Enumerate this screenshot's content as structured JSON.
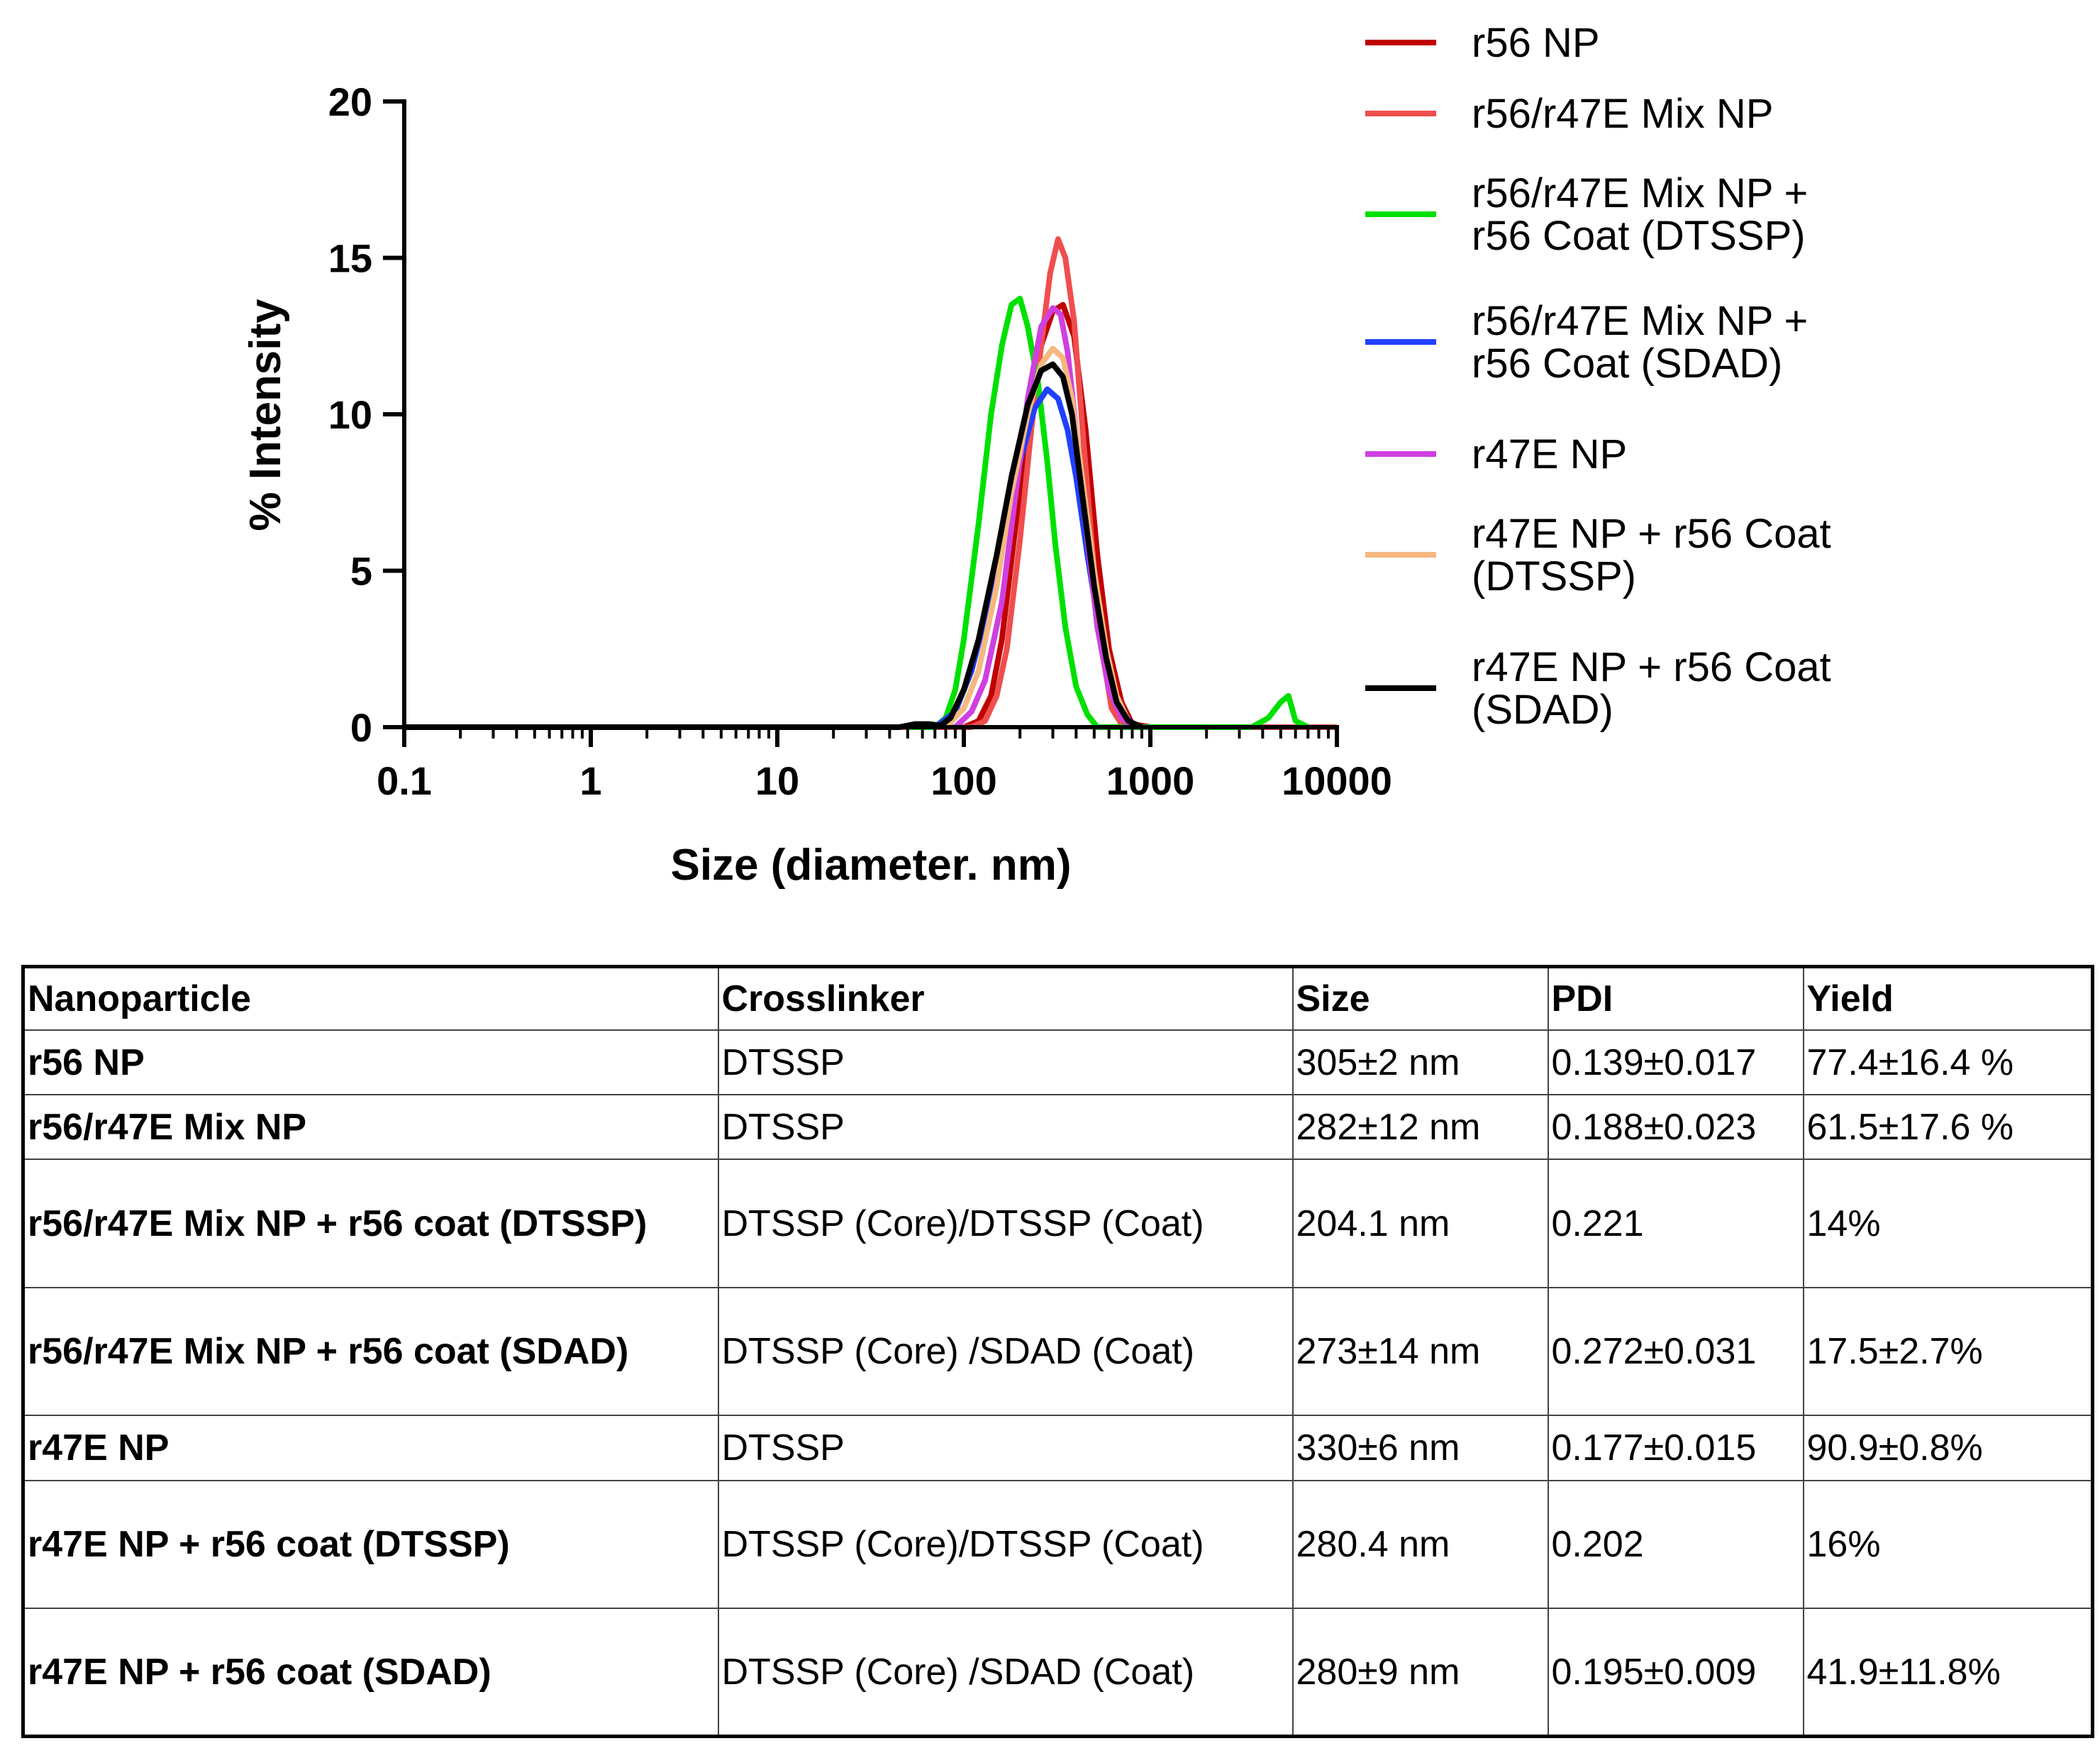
{
  "chart_data": {
    "type": "line",
    "title": "",
    "xlabel": "Size (diameter. nm)",
    "ylabel": "% Intensity",
    "xscale": "log",
    "xlim": [
      0.1,
      10000
    ],
    "ylim": [
      0,
      20
    ],
    "xticks": [
      "0.1",
      "1",
      "10",
      "100",
      "1000",
      "10000"
    ],
    "yticks": [
      "0",
      "5",
      "10",
      "15",
      "20"
    ],
    "grid": false,
    "legend_position": "right",
    "series": [
      {
        "name": "r56 NP",
        "color": "#c00000",
        "x": [
          0.4,
          100,
          120,
          140,
          160,
          190,
          220,
          260,
          300,
          340,
          390,
          450,
          520,
          600,
          700,
          800,
          1000
        ],
        "y": [
          0,
          0,
          0.2,
          1.0,
          2.8,
          6.5,
          9.5,
          12.2,
          13.3,
          13.5,
          12.5,
          9.5,
          5.5,
          2.5,
          0.8,
          0.1,
          0
        ]
      },
      {
        "name": "r56/r47E Mix NP",
        "color": "#f04e4e",
        "x": [
          0.4,
          110,
          130,
          150,
          170,
          200,
          230,
          260,
          290,
          320,
          350,
          390,
          440,
          500,
          560,
          620,
          700,
          800,
          1000,
          10000
        ],
        "y": [
          0,
          0,
          0.2,
          1.0,
          2.5,
          6.0,
          9.5,
          12.2,
          14.5,
          15.6,
          15.0,
          13.0,
          9.0,
          5.0,
          2.2,
          0.6,
          0.1,
          0,
          0,
          0
        ]
      },
      {
        "name": "r56/r47E Mix NP + r56 Coat (DTSSP)",
        "color": "#00e000",
        "x": [
          50,
          70,
          80,
          90,
          100,
          120,
          140,
          160,
          180,
          200,
          220,
          250,
          280,
          310,
          350,
          400,
          460,
          520,
          600,
          700,
          1000,
          3500,
          4300,
          5000,
          5500,
          6000,
          7000
        ],
        "y": [
          0,
          0,
          0.3,
          1.2,
          2.8,
          6.5,
          10.0,
          12.2,
          13.5,
          13.7,
          12.8,
          11.0,
          8.5,
          5.8,
          3.2,
          1.3,
          0.4,
          0,
          0,
          0,
          0,
          0,
          0.3,
          0.8,
          1.0,
          0.2,
          0
        ]
      },
      {
        "name": "r56/r47E Mix NP + r56 Coat (SDAD)",
        "color": "#2040ff",
        "x": [
          70,
          90,
          110,
          130,
          160,
          200,
          240,
          280,
          320,
          360,
          400,
          460,
          520,
          600,
          700,
          800,
          900
        ],
        "y": [
          0,
          0.5,
          1.8,
          3.5,
          6.0,
          8.5,
          10.2,
          10.8,
          10.5,
          9.5,
          8.0,
          5.5,
          3.5,
          1.5,
          0.5,
          0.1,
          0
        ]
      },
      {
        "name": "r47E NP",
        "color": "#d040e0",
        "x": [
          90,
          110,
          130,
          160,
          190,
          220,
          260,
          300,
          330,
          360,
          400,
          460,
          520,
          600,
          700,
          800
        ],
        "y": [
          0,
          0.5,
          1.5,
          4.0,
          7.5,
          10.5,
          12.8,
          13.4,
          13.2,
          12.0,
          9.5,
          6.0,
          3.2,
          1.2,
          0.3,
          0
        ]
      },
      {
        "name": "r47E NP + r56 Coat (DTSSP)",
        "color": "#f5b880",
        "x": [
          80,
          100,
          120,
          150,
          180,
          220,
          260,
          300,
          340,
          380,
          430,
          500,
          580,
          660,
          760,
          900
        ],
        "y": [
          0,
          0.6,
          1.8,
          4.5,
          7.5,
          10.0,
          11.6,
          12.1,
          11.8,
          10.5,
          8.0,
          5.0,
          2.5,
          1.0,
          0.2,
          0
        ]
      },
      {
        "name": "r47E NP + r56 Coat (SDAD)",
        "color": "#000000",
        "x": [
          0.1,
          45,
          55,
          65,
          75,
          85,
          100,
          120,
          150,
          180,
          220,
          260,
          300,
          340,
          380,
          430,
          500,
          580,
          660,
          760,
          900
        ],
        "y": [
          0,
          0,
          0.1,
          0.1,
          0.05,
          0.3,
          1.2,
          2.8,
          5.5,
          8.0,
          10.3,
          11.4,
          11.6,
          11.2,
          10.0,
          7.5,
          4.5,
          2.2,
          0.8,
          0.2,
          0
        ]
      }
    ]
  },
  "table": {
    "headers": [
      "Nanoparticle",
      "Crosslinker",
      "Size",
      "PDI",
      "Yield"
    ],
    "rows": [
      [
        "r56 NP",
        "DTSSP",
        "305±2 nm",
        "0.139±0.017",
        "77.4±16.4 %"
      ],
      [
        "r56/r47E Mix NP",
        "DTSSP",
        "282±12 nm",
        "0.188±0.023",
        "61.5±17.6 %"
      ],
      [
        "r56/r47E Mix NP + r56 coat (DTSSP)",
        "DTSSP (Core)/DTSSP (Coat)",
        "204.1 nm",
        "0.221",
        "14%"
      ],
      [
        "r56/r47E Mix NP + r56 coat (SDAD)",
        "DTSSP (Core) /SDAD (Coat)",
        "273±14 nm",
        "0.272±0.031",
        "17.5±2.7%"
      ],
      [
        "r47E NP",
        "DTSSP",
        "330±6 nm",
        "0.177±0.015",
        "90.9±0.8%"
      ],
      [
        "r47E NP + r56 coat (DTSSP)",
        "DTSSP (Core)/DTSSP (Coat)",
        "280.4 nm",
        "0.202",
        "16%"
      ],
      [
        "r47E NP + r56 coat (SDAD)",
        "DTSSP (Core) /SDAD (Coat)",
        "280±9 nm",
        "0.195±0.009",
        "41.9±11.8%"
      ]
    ]
  }
}
